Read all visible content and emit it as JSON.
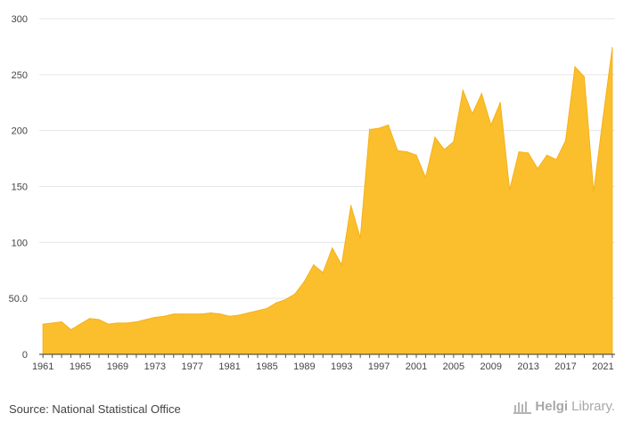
{
  "chart_data": {
    "type": "area",
    "color": "#fbbf2d",
    "stroke_color": "#f5b119",
    "grid": true,
    "ylim": [
      0,
      300
    ],
    "xlim": [
      1960.6,
      2022.3
    ],
    "y_ticks": [
      {
        "value": 0,
        "label": "0"
      },
      {
        "value": 50,
        "label": "50.0"
      },
      {
        "value": 100,
        "label": "100"
      },
      {
        "value": 150,
        "label": "150"
      },
      {
        "value": 200,
        "label": "200"
      },
      {
        "value": 250,
        "label": "250"
      },
      {
        "value": 300,
        "label": "300"
      }
    ],
    "x_ticks": [
      1961,
      1965,
      1969,
      1973,
      1977,
      1981,
      1985,
      1989,
      1993,
      1997,
      2001,
      2005,
      2009,
      2013,
      2017,
      2021
    ],
    "x_tick_labels": [
      "1961",
      "1965",
      "1969",
      "1973",
      "1977",
      "1981",
      "1985",
      "1989",
      "1993",
      "1997",
      "2001",
      "2005",
      "2009",
      "2013",
      "2017",
      "2021"
    ],
    "x": [
      1961,
      1962,
      1963,
      1964,
      1965,
      1966,
      1967,
      1968,
      1969,
      1970,
      1971,
      1972,
      1973,
      1974,
      1975,
      1976,
      1977,
      1978,
      1979,
      1980,
      1981,
      1982,
      1983,
      1984,
      1985,
      1986,
      1987,
      1988,
      1989,
      1990,
      1991,
      1992,
      1993,
      1994,
      1995,
      1996,
      1997,
      1998,
      1999,
      2000,
      2001,
      2002,
      2003,
      2004,
      2005,
      2006,
      2007,
      2008,
      2009,
      2010,
      2011,
      2012,
      2013,
      2014,
      2015,
      2016,
      2017,
      2018,
      2019,
      2020,
      2021,
      2022
    ],
    "values": [
      27,
      28,
      29,
      22,
      27,
      32,
      31,
      27,
      28,
      28,
      29,
      31,
      33,
      34,
      36,
      36,
      36,
      36,
      37,
      36,
      34,
      35,
      37,
      39,
      41,
      46,
      49,
      54,
      65,
      80,
      73,
      95,
      80,
      133,
      104,
      201,
      202,
      205,
      182,
      181,
      178,
      158,
      194,
      183,
      190,
      236,
      215,
      233,
      205,
      225,
      147,
      181,
      180,
      166,
      178,
      174,
      191,
      257,
      248,
      145,
      211,
      274
    ]
  },
  "footer": {
    "source": "Source: National Statistical Office",
    "logo_part1": "Helgi",
    "logo_part2": "Library."
  }
}
